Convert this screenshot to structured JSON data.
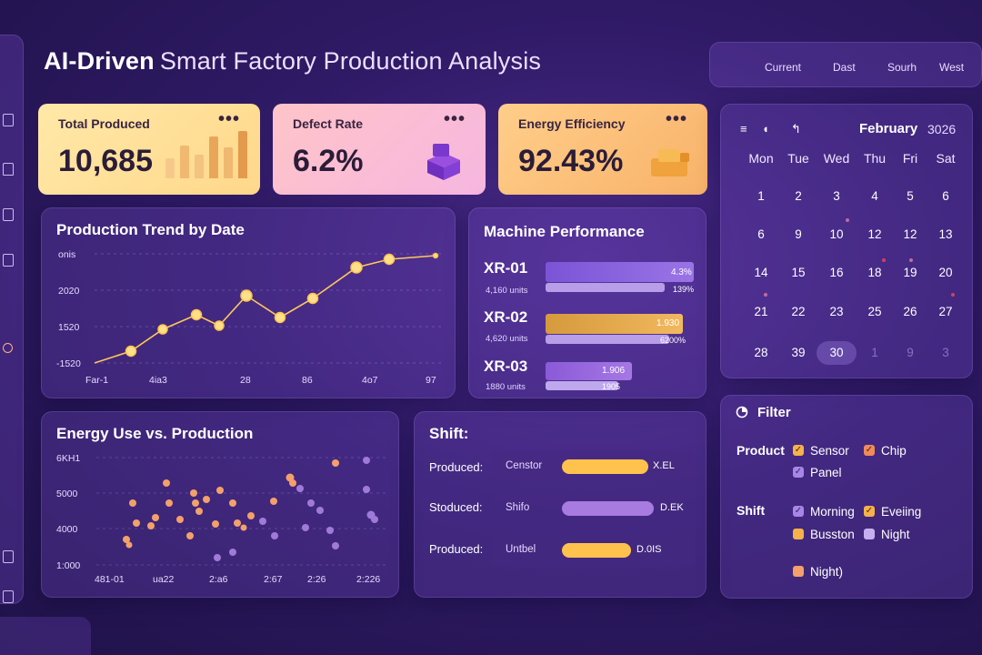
{
  "header": {
    "title_strong": "AI-Driven",
    "title_light": "Smart Factory Production Analysis",
    "regions": [
      "Current",
      "Dast",
      "Sourh",
      "West"
    ]
  },
  "kpis": [
    {
      "label": "Total Produced",
      "value": "10,685",
      "menu": "•••"
    },
    {
      "label": "Defect Rate",
      "value": "6.2%",
      "menu": "•••"
    },
    {
      "label": "Energy Efficiency",
      "value": "92.43%",
      "menu": "•••"
    }
  ],
  "trend": {
    "title": "Production Trend by Date",
    "y_ticks": [
      "onis",
      "2020",
      "1520",
      "-1520"
    ],
    "x_ticks": [
      "Far-1",
      "4ia3",
      "28",
      "86",
      "4o7",
      "97"
    ]
  },
  "machines": {
    "title": "Machine Performance",
    "items": [
      {
        "name": "XR-01",
        "units": "4,160 units",
        "bar_label": "4.3%",
        "sub_label": "139%",
        "top_fraction": 0.98,
        "sub_fraction": 0.79
      },
      {
        "name": "XR-02",
        "units": "4,620 units",
        "bar_label": "1.930",
        "sub_label": "6200%",
        "top_fraction": 0.91,
        "sub_fraction": 0.82
      },
      {
        "name": "XR-03",
        "units": "1880 units",
        "bar_label": "1.906",
        "sub_label": "1905",
        "top_fraction": 0.57,
        "sub_fraction": 0.48
      }
    ]
  },
  "calendar": {
    "month": "February",
    "year": "3026",
    "toolbar": [
      "≡",
      "◖",
      "↰"
    ],
    "weekdays": [
      "Mon",
      "Tue",
      "Wed",
      "Thu",
      "Fri",
      "Sat"
    ],
    "weeks": [
      [
        "1",
        "2",
        "3",
        "4",
        "5",
        "6"
      ],
      [
        "6",
        "9",
        "10",
        "12",
        "12",
        "13"
      ],
      [
        "14",
        "15",
        "16",
        "18",
        "19",
        "20"
      ],
      [
        "21",
        "22",
        "23",
        "25",
        "26",
        "27"
      ],
      [
        "28",
        "39",
        "30",
        "1",
        "9",
        "3"
      ]
    ],
    "selected": "30"
  },
  "energy": {
    "title": "Energy Use vs. Production",
    "y_ticks": [
      "6KH1",
      "5000",
      "4000",
      "1:000"
    ],
    "x_ticks": [
      "481-01",
      "ua22",
      "2:a6",
      "2:67",
      "2:26",
      "2:226"
    ]
  },
  "shift": {
    "title": "Shift:",
    "rows": [
      {
        "label": "Produced:",
        "name": "Censtor",
        "value": "X.EL",
        "fraction": 0.74,
        "color": "#ffc24d"
      },
      {
        "label": "Stoduced:",
        "name": "Shifo",
        "value": "D.EK",
        "fraction": 0.79,
        "color": "#a77be0"
      },
      {
        "label": "Produced:",
        "name": "Untbel",
        "value": "D.0IS",
        "fraction": 0.59,
        "color": "#ffc24d"
      }
    ]
  },
  "filter": {
    "title": "Filter",
    "product_label": "Product",
    "products": [
      "Sensor",
      "Chip",
      "Panel"
    ],
    "shift_label": "Shift",
    "shifts": [
      "Morning",
      "Eveiing",
      "Busston",
      "Night",
      "Night)"
    ]
  },
  "colors": {
    "accent_yellow": "#ffc24d",
    "accent_purple": "#a77be0",
    "accent_orange": "#f3a06a"
  }
}
